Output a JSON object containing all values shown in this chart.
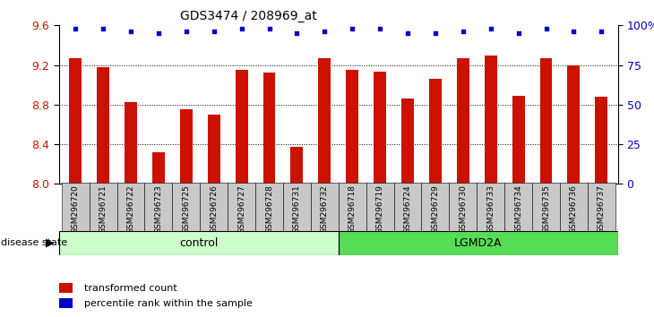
{
  "title": "GDS3474 / 208969_at",
  "samples": [
    "GSM296720",
    "GSM296721",
    "GSM296722",
    "GSM296723",
    "GSM296725",
    "GSM296726",
    "GSM296727",
    "GSM296728",
    "GSM296731",
    "GSM296732",
    "GSM296718",
    "GSM296719",
    "GSM296724",
    "GSM296729",
    "GSM296730",
    "GSM296733",
    "GSM296734",
    "GSM296735",
    "GSM296736",
    "GSM296737"
  ],
  "bar_values": [
    9.27,
    9.18,
    8.83,
    8.32,
    8.75,
    8.7,
    9.15,
    9.12,
    8.37,
    9.27,
    9.15,
    9.13,
    8.86,
    9.06,
    9.27,
    9.3,
    8.89,
    9.27,
    9.2,
    8.88
  ],
  "percentile_values": [
    98,
    98,
    96,
    95,
    96,
    96,
    98,
    98,
    95,
    96,
    98,
    98,
    95,
    95,
    96,
    98,
    95,
    98,
    96,
    96
  ],
  "groups": [
    "control",
    "control",
    "control",
    "control",
    "control",
    "control",
    "control",
    "control",
    "control",
    "control",
    "LGMD2A",
    "LGMD2A",
    "LGMD2A",
    "LGMD2A",
    "LGMD2A",
    "LGMD2A",
    "LGMD2A",
    "LGMD2A",
    "LGMD2A",
    "LGMD2A"
  ],
  "bar_color": "#cc1100",
  "percentile_color": "#0000cc",
  "control_color": "#ccffcc",
  "lgmd2a_color": "#55dd55",
  "ylim_left": [
    8.0,
    9.6
  ],
  "ylim_right": [
    0,
    100
  ],
  "yticks_left": [
    8.0,
    8.4,
    8.8,
    9.2,
    9.6
  ],
  "yticks_right": [
    0,
    25,
    50,
    75,
    100
  ],
  "grid_values": [
    8.4,
    8.8,
    9.2
  ],
  "legend_items": [
    "transformed count",
    "percentile rank within the sample"
  ],
  "bar_width": 0.45,
  "background_color": "#ffffff",
  "tick_label_fontsize": 7,
  "axis_label_fontsize": 9
}
